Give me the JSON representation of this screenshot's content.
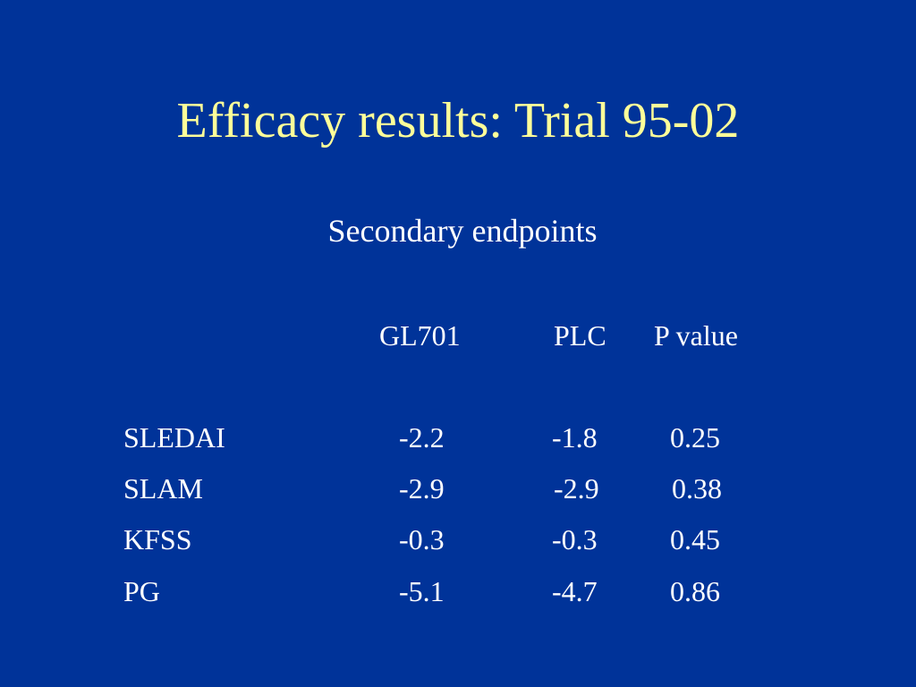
{
  "slide": {
    "title": "Efficacy results: Trial 95-02",
    "subtitle": "Secondary endpoints",
    "colors": {
      "background": "#003399",
      "title": "#ffff99",
      "text": "#ffffff"
    }
  },
  "table": {
    "headers": {
      "gl701": "GL701",
      "plc": "PLC",
      "p_value": "P value"
    },
    "rows": [
      {
        "name": "SLEDAI",
        "gl701": "-2.2",
        "plc": "-1.8",
        "p_value": "0.25"
      },
      {
        "name": "SLAM",
        "gl701": "-2.9",
        "plc": "-2.9",
        "p_value": "0.38"
      },
      {
        "name": "KFSS",
        "gl701": "-0.3",
        "plc": "-0.3",
        "p_value": "0.45"
      },
      {
        "name": "PG",
        "gl701": "-5.1",
        "plc": "-4.7",
        "p_value": "0.86"
      }
    ]
  }
}
